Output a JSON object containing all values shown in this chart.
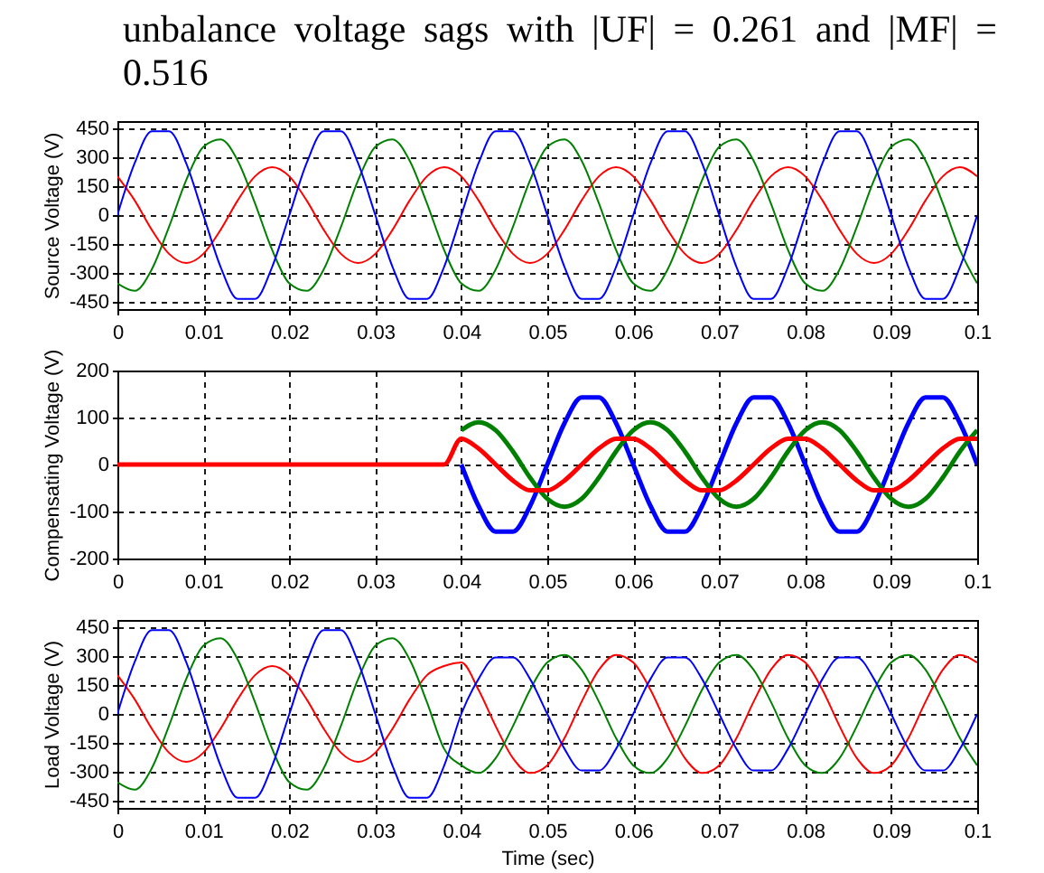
{
  "chart_data": [
    {
      "type": "line",
      "title": "unbalance voltage sags with |UF| = 0.261 and |MF| = 0.516",
      "ylabel": "Source Voltage (V)",
      "x": [
        0,
        0.002,
        0.004,
        0.006,
        0.008,
        0.01,
        0.012,
        0.014,
        0.016,
        0.018,
        0.02,
        0.022,
        0.024,
        0.026,
        0.028,
        0.03,
        0.032,
        0.034,
        0.036,
        0.038,
        0.04,
        0.042,
        0.044,
        0.046,
        0.048,
        0.05,
        0.052,
        0.054,
        0.056,
        0.058,
        0.06,
        0.062,
        0.064,
        0.066,
        0.068,
        0.07,
        0.072,
        0.074,
        0.076,
        0.078,
        0.08,
        0.082,
        0.084,
        0.086,
        0.088,
        0.09,
        0.092,
        0.094,
        0.096,
        0.098,
        0.1
      ],
      "series": [
        {
          "color": "#ff0000",
          "values": [
            202,
            77,
            -77,
            -202,
            -250,
            -202,
            -77,
            77,
            202,
            250,
            202,
            77,
            -77,
            -202,
            -250,
            -202,
            -77,
            77,
            202,
            250,
            202,
            77,
            -77,
            -202,
            -250,
            -202,
            -77,
            77,
            202,
            250,
            202,
            77,
            -77,
            -202,
            -250,
            -202,
            -77,
            77,
            202,
            250,
            202,
            77,
            -77,
            -202,
            -250,
            -202,
            -77,
            77,
            202,
            250,
            202
          ]
        },
        {
          "color": "#008000",
          "values": [
            -356,
            -395,
            -283,
            -62,
            182,
            356,
            395,
            283,
            62,
            -182,
            -356,
            -395,
            -283,
            -62,
            182,
            356,
            395,
            283,
            62,
            -182,
            -356,
            -395,
            -283,
            -62,
            182,
            356,
            395,
            283,
            62,
            -182,
            -356,
            -395,
            -283,
            -62,
            182,
            356,
            395,
            283,
            62,
            -182,
            -356,
            -395,
            -283,
            -62,
            182,
            356,
            395,
            283,
            62,
            -182,
            -356
          ]
        },
        {
          "color": "#0000ff",
          "values": [
            0,
            270,
            437,
            437,
            270,
            0,
            -270,
            -437,
            -437,
            -270,
            0,
            270,
            437,
            437,
            270,
            0,
            -270,
            -437,
            -437,
            -270,
            0,
            270,
            437,
            437,
            270,
            0,
            -270,
            -437,
            -437,
            -270,
            0,
            270,
            437,
            437,
            270,
            0,
            -270,
            -437,
            -437,
            -270,
            0,
            270,
            437,
            437,
            270,
            0,
            -270,
            -437,
            -437,
            -270,
            0
          ]
        }
      ],
      "xlim": [
        0,
        0.1
      ],
      "xticks": [
        0,
        0.01,
        0.02,
        0.03,
        0.04,
        0.05,
        0.06,
        0.07,
        0.08,
        0.09,
        0.1
      ],
      "ylim": [
        -490,
        490
      ],
      "yticks": [
        -450,
        -300,
        -150,
        0,
        150,
        300,
        450
      ],
      "grid": true
    },
    {
      "type": "line",
      "ylabel": "Compensating Voltage (V)",
      "x": [
        0,
        0.002,
        0.004,
        0.006,
        0.008,
        0.01,
        0.012,
        0.014,
        0.016,
        0.018,
        0.02,
        0.022,
        0.024,
        0.026,
        0.028,
        0.03,
        0.032,
        0.034,
        0.036,
        0.038,
        0.04,
        0.042,
        0.044,
        0.046,
        0.048,
        0.05,
        0.052,
        0.054,
        0.056,
        0.058,
        0.06,
        0.062,
        0.064,
        0.066,
        0.068,
        0.07,
        0.072,
        0.074,
        0.076,
        0.078,
        0.08,
        0.082,
        0.084,
        0.086,
        0.088,
        0.09,
        0.092,
        0.094,
        0.096,
        0.098,
        0.1
      ],
      "series": [
        {
          "color": "#0000ff",
          "values": [
            null,
            null,
            null,
            null,
            null,
            null,
            null,
            null,
            null,
            null,
            null,
            null,
            null,
            null,
            null,
            null,
            null,
            null,
            null,
            null,
            0,
            -88,
            -143,
            -143,
            -88,
            0,
            88,
            143,
            143,
            88,
            0,
            -88,
            -143,
            -143,
            -88,
            0,
            88,
            143,
            143,
            88,
            0,
            -88,
            -143,
            -143,
            -88,
            0,
            88,
            143,
            143,
            88,
            0
          ]
        },
        {
          "color": "#008000",
          "values": [
            null,
            null,
            null,
            null,
            null,
            null,
            null,
            null,
            null,
            null,
            null,
            null,
            null,
            null,
            null,
            null,
            null,
            null,
            null,
            null,
            73,
            90,
            73,
            28,
            -28,
            -73,
            -90,
            -73,
            -28,
            28,
            73,
            90,
            73,
            28,
            -28,
            -73,
            -90,
            -73,
            -28,
            28,
            73,
            90,
            73,
            28,
            -28,
            -73,
            -90,
            -73,
            -28,
            28,
            73
          ]
        },
        {
          "color": "#ff0000",
          "values": [
            0,
            0,
            0,
            0,
            0,
            0,
            0,
            0,
            0,
            0,
            0,
            0,
            0,
            0,
            0,
            0,
            0,
            0,
            0,
            0,
            55,
            34,
            0,
            -34,
            -55,
            -55,
            -34,
            0,
            34,
            55,
            55,
            34,
            0,
            -34,
            -55,
            -55,
            -34,
            0,
            34,
            55,
            55,
            34,
            0,
            -34,
            -55,
            -55,
            -34,
            0,
            34,
            55,
            55
          ]
        }
      ],
      "xlim": [
        0,
        0.1
      ],
      "xticks": [
        0,
        0.01,
        0.02,
        0.03,
        0.04,
        0.05,
        0.06,
        0.07,
        0.08,
        0.09,
        0.1
      ],
      "ylim": [
        -200,
        200
      ],
      "yticks": [
        -200,
        -100,
        0,
        100,
        200
      ],
      "grid": true
    },
    {
      "type": "line",
      "xlabel": "Time (sec)",
      "ylabel": "Load Voltage (V)",
      "x": [
        0,
        0.002,
        0.004,
        0.006,
        0.008,
        0.01,
        0.012,
        0.014,
        0.016,
        0.018,
        0.02,
        0.022,
        0.024,
        0.026,
        0.028,
        0.03,
        0.032,
        0.034,
        0.036,
        0.038,
        0.04,
        0.042,
        0.044,
        0.046,
        0.048,
        0.05,
        0.052,
        0.054,
        0.056,
        0.058,
        0.06,
        0.062,
        0.064,
        0.066,
        0.068,
        0.07,
        0.072,
        0.074,
        0.076,
        0.078,
        0.08,
        0.082,
        0.084,
        0.086,
        0.088,
        0.09,
        0.092,
        0.094,
        0.096,
        0.098,
        0.1
      ],
      "series": [
        {
          "color": "#ff0000",
          "values": [
            202,
            77,
            -77,
            -202,
            -250,
            -202,
            -77,
            77,
            202,
            250,
            202,
            77,
            -77,
            -202,
            -250,
            -202,
            -77,
            77,
            202,
            250,
            268,
            126,
            -64,
            -230,
            -308,
            -268,
            -126,
            64,
            230,
            308,
            268,
            126,
            -64,
            -230,
            -308,
            -268,
            -126,
            64,
            230,
            308,
            268,
            126,
            -64,
            -230,
            -308,
            -268,
            -126,
            64,
            230,
            308,
            268
          ]
        },
        {
          "color": "#008000",
          "values": [
            -356,
            -395,
            -283,
            -62,
            182,
            356,
            395,
            283,
            62,
            -182,
            -356,
            -395,
            -283,
            -62,
            182,
            356,
            395,
            283,
            62,
            -182,
            -268,
            -308,
            -230,
            -64,
            126,
            268,
            308,
            230,
            64,
            -126,
            -268,
            -308,
            -230,
            -64,
            126,
            268,
            308,
            230,
            64,
            -126,
            -268,
            -308,
            -230,
            -64,
            126,
            268,
            308,
            230,
            64,
            -126,
            -268
          ]
        },
        {
          "color": "#0000ff",
          "values": [
            0,
            270,
            437,
            437,
            270,
            0,
            -270,
            -437,
            -437,
            -270,
            0,
            270,
            437,
            437,
            270,
            0,
            -270,
            -437,
            -437,
            -270,
            0,
            182,
            295,
            295,
            182,
            0,
            -182,
            -295,
            -295,
            -182,
            0,
            182,
            295,
            295,
            182,
            0,
            -182,
            -295,
            -295,
            -182,
            0,
            182,
            295,
            295,
            182,
            0,
            -182,
            -295,
            -295,
            -182,
            0
          ]
        }
      ],
      "xlim": [
        0,
        0.1
      ],
      "xticks": [
        0,
        0.01,
        0.02,
        0.03,
        0.04,
        0.05,
        0.06,
        0.07,
        0.08,
        0.09,
        0.1
      ],
      "ylim": [
        -490,
        490
      ],
      "yticks": [
        -450,
        -300,
        -150,
        0,
        150,
        300,
        450
      ],
      "grid": true
    }
  ]
}
